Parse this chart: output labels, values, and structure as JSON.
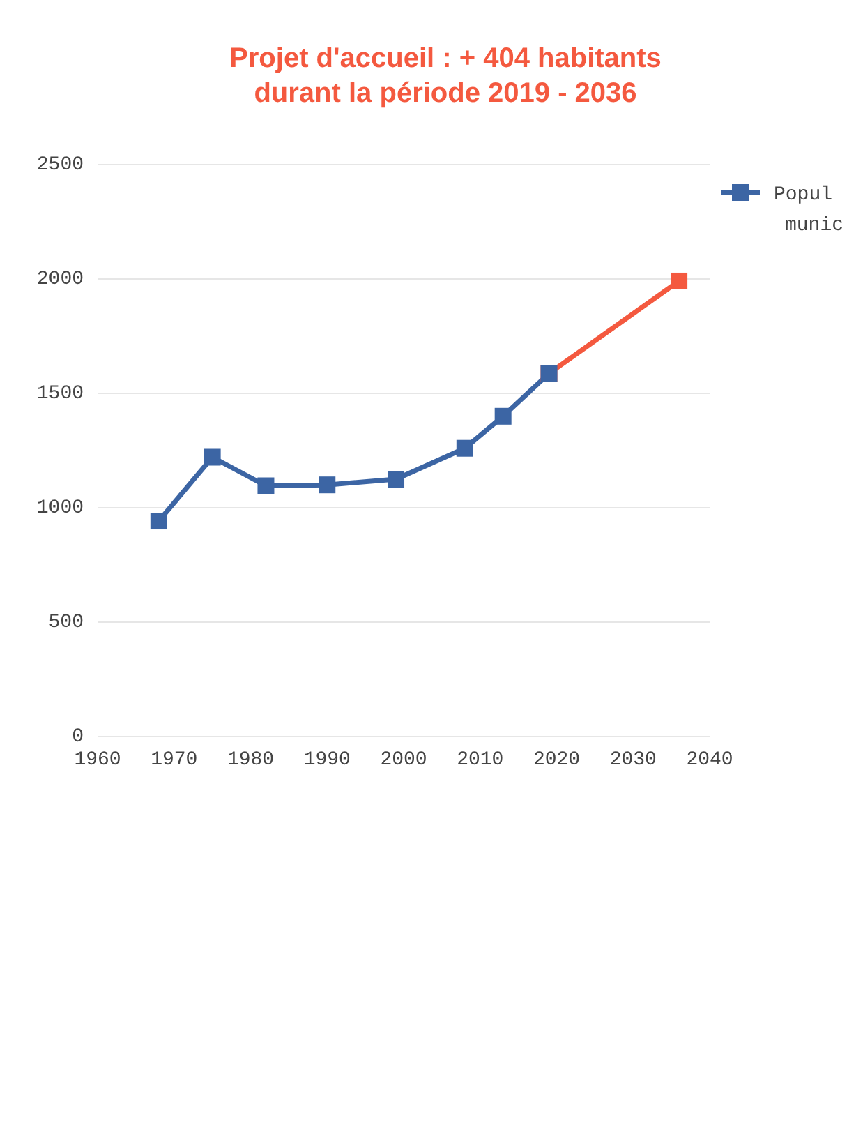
{
  "chart_data": {
    "type": "line",
    "series": [
      {
        "name": "Popul munic",
        "color": "#3c65a4",
        "x": [
          1968,
          1975,
          1982,
          1990,
          1999,
          2008,
          2013,
          2019
        ],
        "values": [
          942,
          1221,
          1096,
          1100,
          1125,
          1260,
          1400,
          1587
        ]
      },
      {
        "color": "#f4593f",
        "x": [
          2019,
          2036
        ],
        "values": [
          1587,
          1991
        ]
      }
    ],
    "xlim": [
      1960,
      2040
    ],
    "xticks": [
      1960,
      1970,
      1980,
      1990,
      2000,
      2010,
      2020,
      2030,
      2040
    ],
    "ylim": [
      0,
      2500
    ],
    "yticks": [
      0,
      500,
      1000,
      1500,
      2000,
      2500
    ],
    "grid": "y",
    "legend": "right",
    "marker": "square",
    "line_style": "solid",
    "annotations": [
      "Projet d'accueil : + 404 habitants\ndurant la période 2019 - 2036"
    ]
  }
}
